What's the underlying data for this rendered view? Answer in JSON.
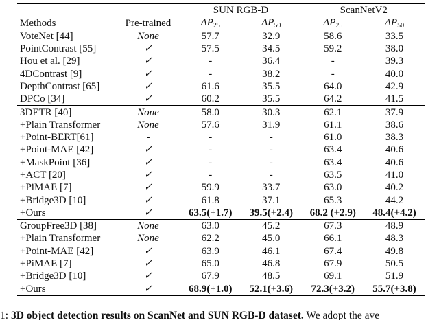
{
  "table": {
    "header": {
      "methods": "Methods",
      "pretrained": "Pre-trained",
      "groups": [
        "SUN RGB-D",
        "ScanNetV2"
      ],
      "metrics": [
        {
          "base": "AP",
          "sub": "25"
        },
        {
          "base": "AP",
          "sub": "50"
        },
        {
          "base": "AP",
          "sub": "25"
        },
        {
          "base": "AP",
          "sub": "50"
        }
      ]
    },
    "sections": [
      {
        "rows": [
          {
            "cells": [
              "VoteNet [44]",
              "None",
              "57.7",
              "32.9",
              "58.6",
              "33.5"
            ]
          },
          {
            "cells": [
              "PointContrast [55]",
              "✓",
              "57.5",
              "34.5",
              "59.2",
              "38.0"
            ]
          },
          {
            "cells": [
              "Hou et al. [29]",
              "✓",
              "-",
              "36.4",
              "-",
              "39.3"
            ]
          },
          {
            "cells": [
              "4DContrast [9]",
              "✓",
              "-",
              "38.2",
              "-",
              "40.0"
            ]
          },
          {
            "cells": [
              "DepthContrast [65]",
              "✓",
              "61.6",
              "35.5",
              "64.0",
              "42.9"
            ]
          },
          {
            "cells": [
              "DPCo [34]",
              "✓",
              "60.2",
              "35.5",
              "64.2",
              "41.5"
            ]
          }
        ]
      },
      {
        "rows": [
          {
            "cells": [
              "3DETR [40]",
              "None",
              "58.0",
              "30.3",
              "62.1",
              "37.9"
            ]
          },
          {
            "cells": [
              "+Plain Transformer",
              "None",
              "57.6",
              "31.9",
              "61.1",
              "38.6"
            ]
          },
          {
            "cells": [
              "+Point-BERT[61]",
              "-",
              "-",
              "-",
              "61.0",
              "38.3"
            ]
          },
          {
            "cells": [
              "+Point-MAE [42]",
              "✓",
              "-",
              "-",
              "63.4",
              "40.6"
            ]
          },
          {
            "cells": [
              "+MaskPoint [36]",
              "✓",
              "-",
              "-",
              "63.4",
              "40.6"
            ]
          },
          {
            "cells": [
              "+ACT [20]",
              "✓",
              "-",
              "-",
              "63.5",
              "41.0"
            ]
          },
          {
            "cells": [
              "+PiMAE [7]",
              "✓",
              "59.9",
              "33.7",
              "63.0",
              "40.2"
            ]
          },
          {
            "cells": [
              "+Bridge3D [10]",
              "✓",
              "61.8",
              "37.1",
              "65.3",
              "44.2"
            ]
          },
          {
            "cells": [
              "+Ours",
              "✓",
              "63.5(+1.7)",
              "39.5(+2.4)",
              "68.2 (+2.9)",
              "48.4(+4.2)"
            ],
            "bold": true
          }
        ]
      },
      {
        "rows": [
          {
            "cells": [
              "GroupFree3D [38]",
              "None",
              "63.0",
              "45.2",
              "67.3",
              "48.9"
            ]
          },
          {
            "cells": [
              "+Plain Transformer",
              "None",
              "62.2",
              "45.0",
              "66.1",
              "48.3"
            ]
          },
          {
            "cells": [
              "+Point-MAE [42]",
              "✓",
              "63.9",
              "46.1",
              "67.4",
              "49.8"
            ]
          },
          {
            "cells": [
              "+PiMAE [7]",
              "✓",
              "65.0",
              "46.8",
              "67.9",
              "50.5"
            ]
          },
          {
            "cells": [
              "+Bridge3D [10]",
              "✓",
              "67.9",
              "48.5",
              "69.1",
              "51.9"
            ]
          },
          {
            "cells": [
              "+Ours",
              "✓",
              "68.9(+1.0)",
              "52.1(+3.6)",
              "72.3(+3.2)",
              "55.7(+3.8)"
            ],
            "bold": true
          }
        ]
      }
    ]
  },
  "caption": {
    "label": "1:",
    "title": "3D object detection results on ScanNet and SUN RGB-D dataset.",
    "text": "We adopt the ave"
  }
}
